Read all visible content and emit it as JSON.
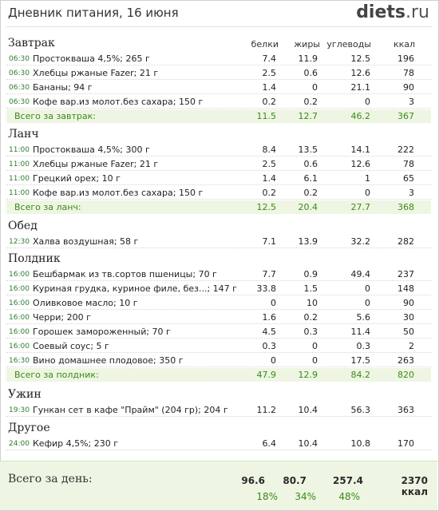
{
  "header": {
    "title": "Дневник питания, 16 июня",
    "logo_brand": "diets",
    "logo_tld": ".ru"
  },
  "columns": [
    "белки",
    "жиры",
    "углеводы",
    "ккал"
  ],
  "meals": [
    {
      "name": "Завтрак",
      "items": [
        {
          "time": "06:30",
          "name": "Простокваша 4,5%; 265 г",
          "p": "7.4",
          "f": "11.9",
          "c": "12.5",
          "k": "196"
        },
        {
          "time": "06:30",
          "name": "Хлебцы ржаные Fazer; 21 г",
          "p": "2.5",
          "f": "0.6",
          "c": "12.6",
          "k": "78"
        },
        {
          "time": "06:30",
          "name": "Бананы; 94 г",
          "p": "1.4",
          "f": "0",
          "c": "21.1",
          "k": "90"
        },
        {
          "time": "06:30",
          "name": "Кофе вар.из молот.без сахара; 150 г",
          "p": "0.2",
          "f": "0.2",
          "c": "0",
          "k": "3"
        }
      ],
      "total": {
        "label": "Всего за завтрак:",
        "p": "11.5",
        "f": "12.7",
        "c": "46.2",
        "k": "367"
      }
    },
    {
      "name": "Ланч",
      "items": [
        {
          "time": "11:00",
          "name": "Простокваша 4,5%; 300 г",
          "p": "8.4",
          "f": "13.5",
          "c": "14.1",
          "k": "222"
        },
        {
          "time": "11:00",
          "name": "Хлебцы ржаные Fazer; 21 г",
          "p": "2.5",
          "f": "0.6",
          "c": "12.6",
          "k": "78"
        },
        {
          "time": "11:00",
          "name": "Грецкий орех; 10 г",
          "p": "1.4",
          "f": "6.1",
          "c": "1",
          "k": "65"
        },
        {
          "time": "11:00",
          "name": "Кофе вар.из молот.без сахара; 150 г",
          "p": "0.2",
          "f": "0.2",
          "c": "0",
          "k": "3"
        }
      ],
      "total": {
        "label": "Всего за ланч:",
        "p": "12.5",
        "f": "20.4",
        "c": "27.7",
        "k": "368"
      }
    },
    {
      "name": "Обед",
      "items": [
        {
          "time": "12:30",
          "name": "Халва воздушная; 58 г",
          "p": "7.1",
          "f": "13.9",
          "c": "32.2",
          "k": "282"
        }
      ]
    },
    {
      "name": "Полдник",
      "items": [
        {
          "time": "16:00",
          "name": "Бешбармак из тв.сортов пшеницы; 70 г",
          "p": "7.7",
          "f": "0.9",
          "c": "49.4",
          "k": "237"
        },
        {
          "time": "16:00",
          "name": "Куриная грудка, куриное филе, без...; 147 г",
          "p": "33.8",
          "f": "1.5",
          "c": "0",
          "k": "148"
        },
        {
          "time": "16:00",
          "name": "Оливковое масло; 10 г",
          "p": "0",
          "f": "10",
          "c": "0",
          "k": "90"
        },
        {
          "time": "16:00",
          "name": "Черри; 200 г",
          "p": "1.6",
          "f": "0.2",
          "c": "5.6",
          "k": "30"
        },
        {
          "time": "16:00",
          "name": "Горошек замороженный; 70 г",
          "p": "4.5",
          "f": "0.3",
          "c": "11.4",
          "k": "50"
        },
        {
          "time": "16:00",
          "name": "Соевый соус; 5 г",
          "p": "0.3",
          "f": "0",
          "c": "0.3",
          "k": "2"
        },
        {
          "time": "16:30",
          "name": "Вино домашнее плодовое; 350 г",
          "p": "0",
          "f": "0",
          "c": "17.5",
          "k": "263"
        }
      ],
      "total": {
        "label": "Всего за полдник:",
        "p": "47.9",
        "f": "12.9",
        "c": "84.2",
        "k": "820"
      }
    },
    {
      "name": "Ужин",
      "items": [
        {
          "time": "19:30",
          "name": "Гункан сет в кафе \"Прайм\" (204 гр); 204 г",
          "p": "11.2",
          "f": "10.4",
          "c": "56.3",
          "k": "363"
        }
      ]
    },
    {
      "name": "Другое",
      "items": [
        {
          "time": "24:00",
          "name": "Кефир 4,5%; 230 г",
          "p": "6.4",
          "f": "10.4",
          "c": "10.8",
          "k": "170"
        }
      ]
    }
  ],
  "day_total": {
    "label": "Всего за день:",
    "p": "96.6",
    "f": "80.7",
    "c": "257.4",
    "k": "2370 ккал",
    "p_pct": "18%",
    "f_pct": "34%",
    "c_pct": "48%"
  }
}
